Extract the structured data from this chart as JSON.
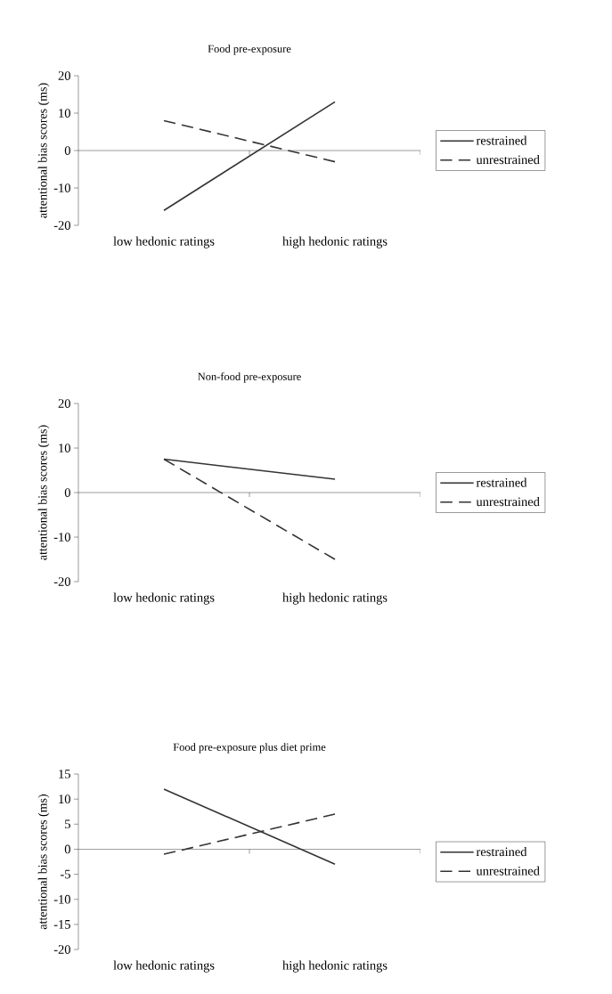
{
  "chart_data": [
    {
      "type": "line",
      "title": "Food pre-exposure",
      "ylabel": "attentional bias scores (ms)",
      "categories": [
        "low hedonic ratings",
        "high hedonic ratings"
      ],
      "ylim": [
        -20,
        20
      ],
      "yticks": [
        -20,
        -10,
        0,
        10,
        20
      ],
      "legend": "right",
      "marker": "none",
      "series": [
        {
          "name": "restrained",
          "color": "#333333",
          "line_style": "solid",
          "values": [
            -16,
            13
          ]
        },
        {
          "name": "unrestrained",
          "color": "#333333",
          "line_style": "dashed",
          "values": [
            8,
            -3
          ]
        }
      ]
    },
    {
      "type": "line",
      "title": "Non-food pre-exposure",
      "ylabel": "attentional bias scores (ms)",
      "categories": [
        "low hedonic ratings",
        "high hedonic ratings"
      ],
      "ylim": [
        -20,
        20
      ],
      "yticks": [
        -20,
        -10,
        0,
        10,
        20
      ],
      "legend": "right",
      "marker": "none",
      "series": [
        {
          "name": "restrained",
          "color": "#333333",
          "line_style": "solid",
          "values": [
            7.5,
            3
          ]
        },
        {
          "name": "unrestrained",
          "color": "#333333",
          "line_style": "dashed",
          "values": [
            7.5,
            -15
          ]
        }
      ]
    },
    {
      "type": "line",
      "title": "Food pre-exposure plus diet prime",
      "ylabel": "attentional bias scores (ms)",
      "categories": [
        "low hedonic ratings",
        "high hedonic ratings"
      ],
      "ylim": [
        -20,
        15
      ],
      "yticks": [
        -20,
        -15,
        -10,
        -5,
        0,
        5,
        10,
        15
      ],
      "legend": "right",
      "marker": "none",
      "series": [
        {
          "name": "restrained",
          "color": "#333333",
          "line_style": "solid",
          "values": [
            12,
            -3
          ]
        },
        {
          "name": "unrestrained",
          "color": "#333333",
          "line_style": "dashed",
          "values": [
            -1,
            7
          ]
        }
      ]
    }
  ]
}
